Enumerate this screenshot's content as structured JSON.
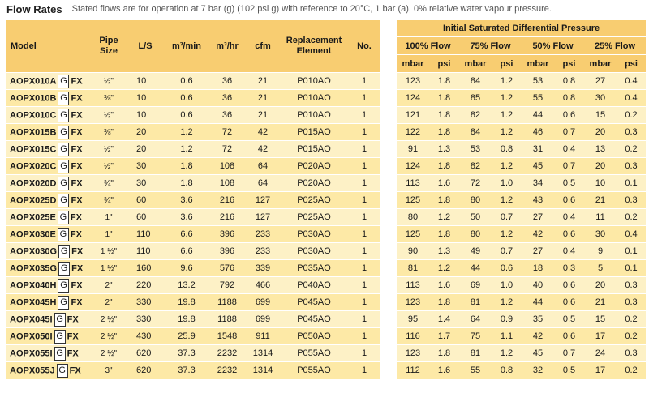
{
  "header": {
    "title": "Flow Rates",
    "subtitle": "Stated flows are for operation at 7 bar (g) (102 psi g) with reference to 20°C, 1 bar (a), 0% relative water vapour pressure."
  },
  "left_headers": {
    "model": "Model",
    "pipe_size": "Pipe Size",
    "ls": "L/S",
    "m3min": "m³/min",
    "m3hr": "m³/hr",
    "cfm": "cfm",
    "replacement": "Replacement Element",
    "no": "No."
  },
  "right_headers": {
    "title": "Initial Saturated Differential Pressure",
    "flow100": "100% Flow",
    "flow75": "75% Flow",
    "flow50": "50% Flow",
    "flow25": "25% Flow",
    "mbar": "mbar",
    "psi": "psi"
  },
  "colors": {
    "header": "#f8cd71",
    "row_light": "#fdf1c6",
    "row_dark": "#fde9a6"
  },
  "rows": [
    {
      "model": "AOPX010A",
      "g": "G",
      "fx": "FX",
      "pipe": "½\"",
      "ls": "10",
      "m3min": "0.6",
      "m3hr": "36",
      "cfm": "21",
      "element": "P010AO",
      "no": "1",
      "p100m": "123",
      "p100p": "1.8",
      "p75m": "84",
      "p75p": "1.2",
      "p50m": "53",
      "p50p": "0.8",
      "p25m": "27",
      "p25p": "0.4"
    },
    {
      "model": "AOPX010B",
      "g": "G",
      "fx": "FX",
      "pipe": "⅜\"",
      "ls": "10",
      "m3min": "0.6",
      "m3hr": "36",
      "cfm": "21",
      "element": "P010AO",
      "no": "1",
      "p100m": "124",
      "p100p": "1.8",
      "p75m": "85",
      "p75p": "1.2",
      "p50m": "55",
      "p50p": "0.8",
      "p25m": "30",
      "p25p": "0.4"
    },
    {
      "model": "AOPX010C",
      "g": "G",
      "fx": "FX",
      "pipe": "½\"",
      "ls": "10",
      "m3min": "0.6",
      "m3hr": "36",
      "cfm": "21",
      "element": "P010AO",
      "no": "1",
      "p100m": "121",
      "p100p": "1.8",
      "p75m": "82",
      "p75p": "1.2",
      "p50m": "44",
      "p50p": "0.6",
      "p25m": "15",
      "p25p": "0.2"
    },
    {
      "model": "AOPX015B",
      "g": "G",
      "fx": "FX",
      "pipe": "⅜\"",
      "ls": "20",
      "m3min": "1.2",
      "m3hr": "72",
      "cfm": "42",
      "element": "P015AO",
      "no": "1",
      "p100m": "122",
      "p100p": "1.8",
      "p75m": "84",
      "p75p": "1.2",
      "p50m": "46",
      "p50p": "0.7",
      "p25m": "20",
      "p25p": "0.3"
    },
    {
      "model": "AOPX015C",
      "g": "G",
      "fx": "FX",
      "pipe": "½\"",
      "ls": "20",
      "m3min": "1.2",
      "m3hr": "72",
      "cfm": "42",
      "element": "P015AO",
      "no": "1",
      "p100m": "91",
      "p100p": "1.3",
      "p75m": "53",
      "p75p": "0.8",
      "p50m": "31",
      "p50p": "0.4",
      "p25m": "13",
      "p25p": "0.2"
    },
    {
      "model": "AOPX020C",
      "g": "G",
      "fx": "FX",
      "pipe": "½\"",
      "ls": "30",
      "m3min": "1.8",
      "m3hr": "108",
      "cfm": "64",
      "element": "P020AO",
      "no": "1",
      "p100m": "124",
      "p100p": "1.8",
      "p75m": "82",
      "p75p": "1.2",
      "p50m": "45",
      "p50p": "0.7",
      "p25m": "20",
      "p25p": "0.3"
    },
    {
      "model": "AOPX020D",
      "g": "G",
      "fx": "FX",
      "pipe": "¾\"",
      "ls": "30",
      "m3min": "1.8",
      "m3hr": "108",
      "cfm": "64",
      "element": "P020AO",
      "no": "1",
      "p100m": "113",
      "p100p": "1.6",
      "p75m": "72",
      "p75p": "1.0",
      "p50m": "34",
      "p50p": "0.5",
      "p25m": "10",
      "p25p": "0.1"
    },
    {
      "model": "AOPX025D",
      "g": "G",
      "fx": "FX",
      "pipe": "¾\"",
      "ls": "60",
      "m3min": "3.6",
      "m3hr": "216",
      "cfm": "127",
      "element": "P025AO",
      "no": "1",
      "p100m": "125",
      "p100p": "1.8",
      "p75m": "80",
      "p75p": "1.2",
      "p50m": "43",
      "p50p": "0.6",
      "p25m": "21",
      "p25p": "0.3"
    },
    {
      "model": "AOPX025E",
      "g": "G",
      "fx": "FX",
      "pipe": "1\"",
      "ls": "60",
      "m3min": "3.6",
      "m3hr": "216",
      "cfm": "127",
      "element": "P025AO",
      "no": "1",
      "p100m": "80",
      "p100p": "1.2",
      "p75m": "50",
      "p75p": "0.7",
      "p50m": "27",
      "p50p": "0.4",
      "p25m": "11",
      "p25p": "0.2"
    },
    {
      "model": "AOPX030E",
      "g": "G",
      "fx": "FX",
      "pipe": "1\"",
      "ls": "110",
      "m3min": "6.6",
      "m3hr": "396",
      "cfm": "233",
      "element": "P030AO",
      "no": "1",
      "p100m": "125",
      "p100p": "1.8",
      "p75m": "80",
      "p75p": "1.2",
      "p50m": "42",
      "p50p": "0.6",
      "p25m": "30",
      "p25p": "0.4"
    },
    {
      "model": "AOPX030G",
      "g": "G",
      "fx": "FX",
      "pipe": "1 ½\"",
      "ls": "110",
      "m3min": "6.6",
      "m3hr": "396",
      "cfm": "233",
      "element": "P030AO",
      "no": "1",
      "p100m": "90",
      "p100p": "1.3",
      "p75m": "49",
      "p75p": "0.7",
      "p50m": "27",
      "p50p": "0.4",
      "p25m": "9",
      "p25p": "0.1"
    },
    {
      "model": "AOPX035G",
      "g": "G",
      "fx": "FX",
      "pipe": "1 ½\"",
      "ls": "160",
      "m3min": "9.6",
      "m3hr": "576",
      "cfm": "339",
      "element": "P035AO",
      "no": "1",
      "p100m": "81",
      "p100p": "1.2",
      "p75m": "44",
      "p75p": "0.6",
      "p50m": "18",
      "p50p": "0.3",
      "p25m": "5",
      "p25p": "0.1"
    },
    {
      "model": "AOPX040H",
      "g": "G",
      "fx": "FX",
      "pipe": "2\"",
      "ls": "220",
      "m3min": "13.2",
      "m3hr": "792",
      "cfm": "466",
      "element": "P040AO",
      "no": "1",
      "p100m": "113",
      "p100p": "1.6",
      "p75m": "69",
      "p75p": "1.0",
      "p50m": "40",
      "p50p": "0.6",
      "p25m": "20",
      "p25p": "0.3"
    },
    {
      "model": "AOPX045H",
      "g": "G",
      "fx": "FX",
      "pipe": "2\"",
      "ls": "330",
      "m3min": "19.8",
      "m3hr": "1188",
      "cfm": "699",
      "element": "P045AO",
      "no": "1",
      "p100m": "123",
      "p100p": "1.8",
      "p75m": "81",
      "p75p": "1.2",
      "p50m": "44",
      "p50p": "0.6",
      "p25m": "21",
      "p25p": "0.3"
    },
    {
      "model": "AOPX045I",
      "g": "G",
      "fx": "FX",
      "pipe": "2 ½\"",
      "ls": "330",
      "m3min": "19.8",
      "m3hr": "1188",
      "cfm": "699",
      "element": "P045AO",
      "no": "1",
      "p100m": "95",
      "p100p": "1.4",
      "p75m": "64",
      "p75p": "0.9",
      "p50m": "35",
      "p50p": "0.5",
      "p25m": "15",
      "p25p": "0.2"
    },
    {
      "model": "AOPX050I",
      "g": "G",
      "fx": "FX",
      "pipe": "2 ½\"",
      "ls": "430",
      "m3min": "25.9",
      "m3hr": "1548",
      "cfm": "911",
      "element": "P050AO",
      "no": "1",
      "p100m": "116",
      "p100p": "1.7",
      "p75m": "75",
      "p75p": "1.1",
      "p50m": "42",
      "p50p": "0.6",
      "p25m": "17",
      "p25p": "0.2"
    },
    {
      "model": "AOPX055I",
      "g": "G",
      "fx": "FX",
      "pipe": "2 ½\"",
      "ls": "620",
      "m3min": "37.3",
      "m3hr": "2232",
      "cfm": "1314",
      "element": "P055AO",
      "no": "1",
      "p100m": "123",
      "p100p": "1.8",
      "p75m": "81",
      "p75p": "1.2",
      "p50m": "45",
      "p50p": "0.7",
      "p25m": "24",
      "p25p": "0.3"
    },
    {
      "model": "AOPX055J",
      "g": "G",
      "fx": "FX",
      "pipe": "3\"",
      "ls": "620",
      "m3min": "37.3",
      "m3hr": "2232",
      "cfm": "1314",
      "element": "P055AO",
      "no": "1",
      "p100m": "112",
      "p100p": "1.6",
      "p75m": "55",
      "p75p": "0.8",
      "p50m": "32",
      "p50p": "0.5",
      "p25m": "17",
      "p25p": "0.2"
    }
  ]
}
